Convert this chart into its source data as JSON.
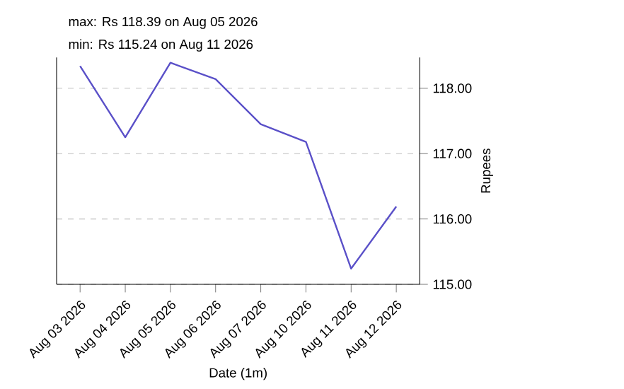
{
  "chart_data": {
    "type": "line",
    "title": "max: Rs 118.39 on Aug 05 2026",
    "subtitle": "min: Rs 115.24 on Aug 11 2026",
    "xlabel": "Date (1m)",
    "ylabel": "Rupees",
    "categories": [
      "Aug 03 2026",
      "Aug 04 2026",
      "Aug 05 2026",
      "Aug 06 2026",
      "Aug 07 2026",
      "Aug 10 2026",
      "Aug 11 2026",
      "Aug 12 2026"
    ],
    "series": [
      {
        "color": "#5a50c8",
        "values": [
          118.34,
          117.25,
          118.39,
          118.14,
          117.45,
          117.18,
          115.24,
          116.19
        ]
      }
    ],
    "ylim": [
      115,
      118.47
    ],
    "yticks": [
      {
        "value": 115,
        "label": "115.00"
      },
      {
        "value": 116,
        "label": "116.00"
      },
      {
        "value": 117,
        "label": "117.00"
      },
      {
        "value": 118,
        "label": "118.00"
      }
    ],
    "grid": "y",
    "line_style": "solid",
    "marker": "none"
  }
}
